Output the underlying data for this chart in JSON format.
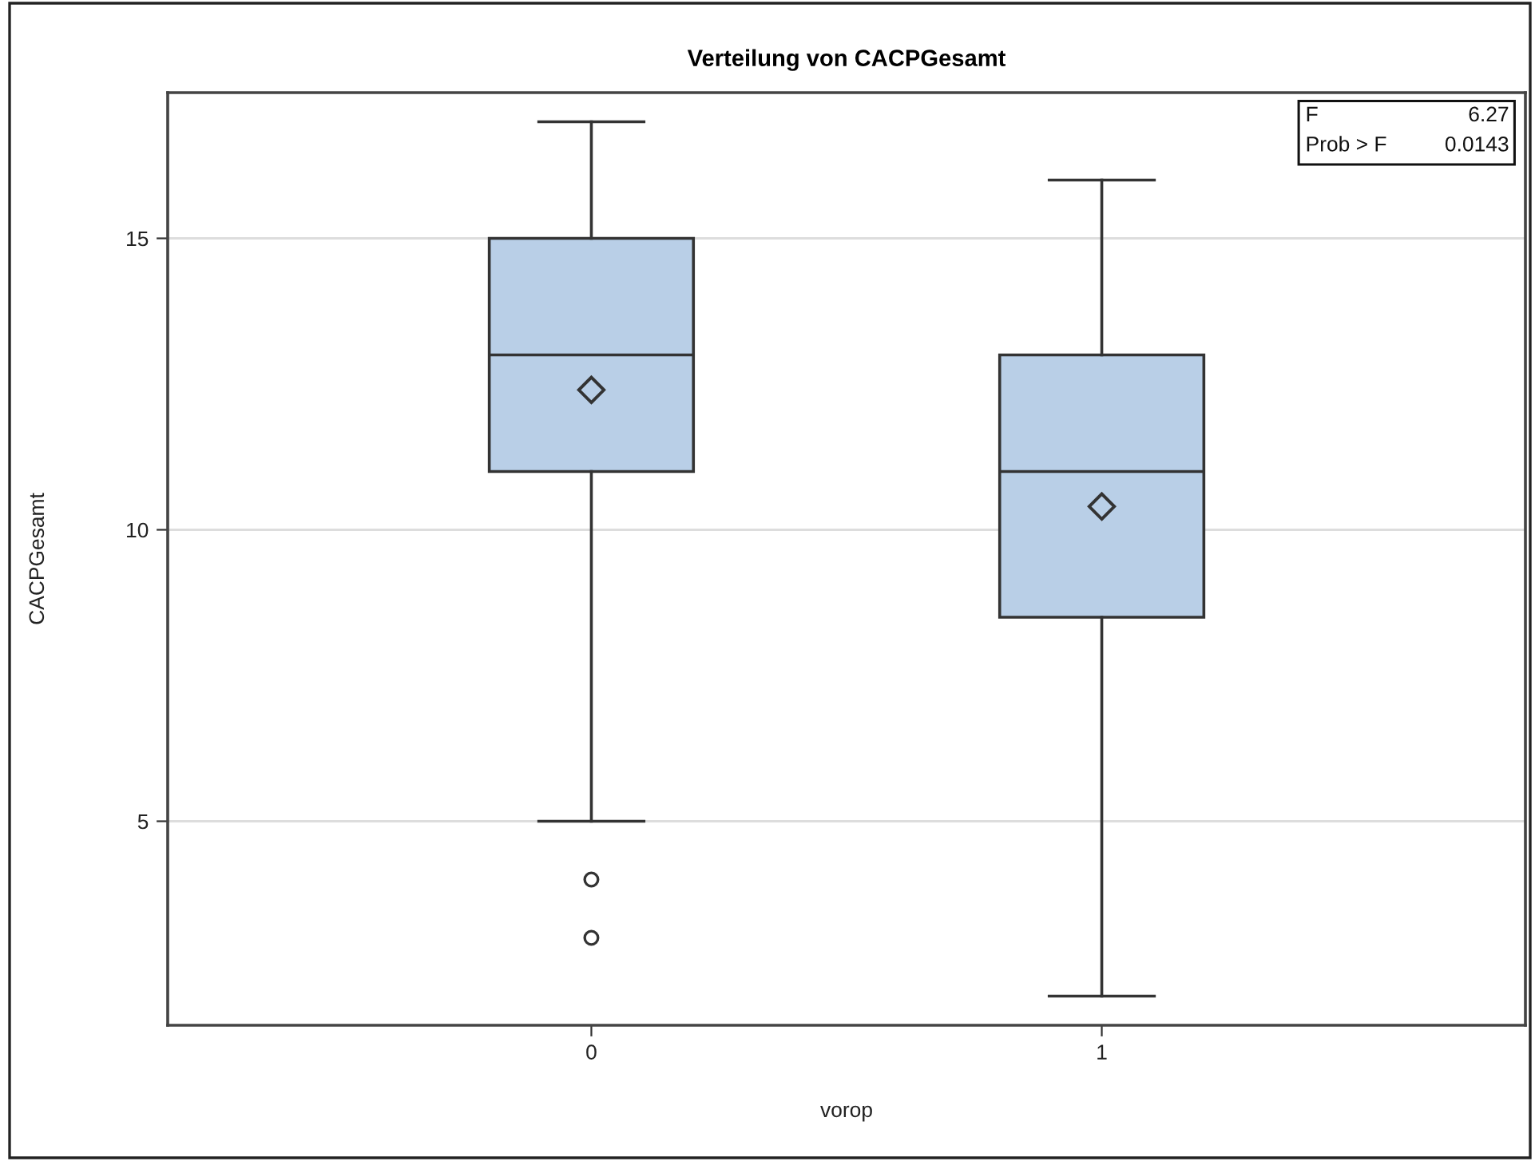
{
  "chart_data": {
    "type": "box",
    "title": "Verteilung von CACPGesamt",
    "xlabel": "vorop",
    "ylabel": "CACPGesamt",
    "categories": [
      "0",
      "1"
    ],
    "boxes": [
      {
        "low": 5,
        "q1": 11,
        "median": 13,
        "q3": 15,
        "high": 17,
        "mean": 12.4,
        "outliers": [
          4,
          3
        ]
      },
      {
        "low": 2,
        "q1": 8.5,
        "median": 11,
        "q3": 13,
        "high": 16,
        "mean": 10.4
      }
    ],
    "color": "#b9cfe7",
    "ylim": [
      1.5,
      17.5
    ],
    "yticks": [
      5,
      10,
      15
    ],
    "grid": "y",
    "annotations": [
      "F",
      "6.27",
      "Prob > F",
      "0.0143"
    ]
  }
}
